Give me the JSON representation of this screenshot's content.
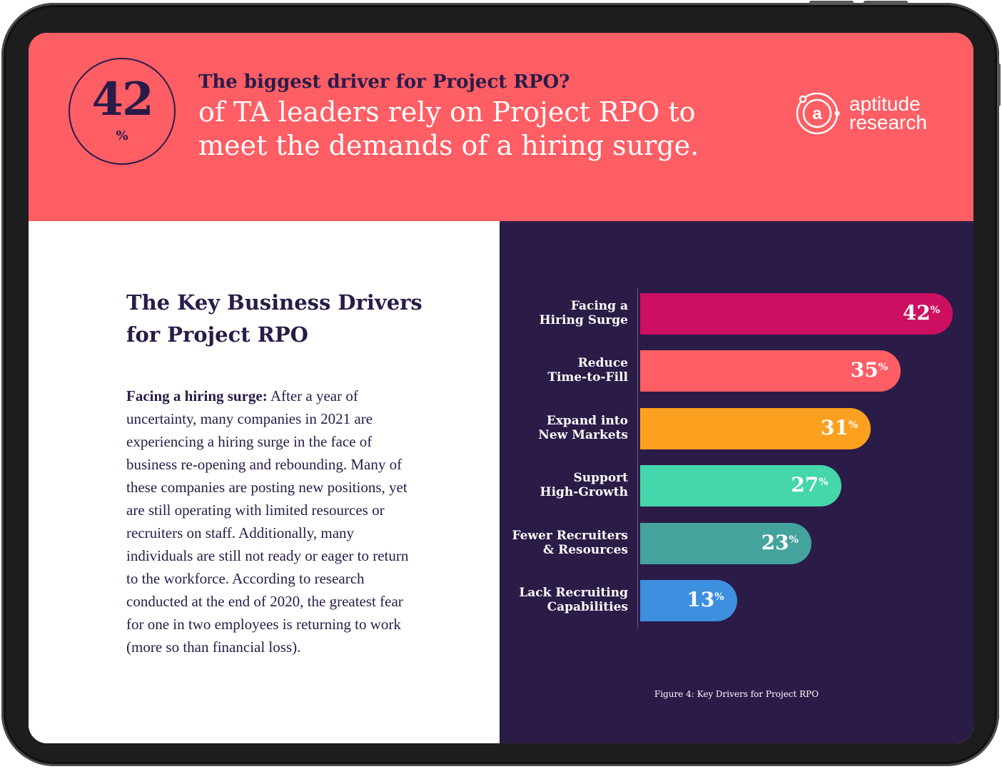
{
  "header": {
    "badge_value": "42",
    "badge_unit": "%",
    "eyebrow": "The biggest driver for Project RPO?",
    "headline": "of TA leaders rely on Project RPO to meet the demands of a hiring surge.",
    "logo_line1": "aptitude",
    "logo_line2": "research",
    "background_color": "#fe5e64"
  },
  "left": {
    "section_title": "The Key Business Drivers for Project RPO",
    "lead_bold": "Facing a hiring surge:",
    "body": " After a year of uncertainty, many companies in 2021 are experiencing a hiring surge in the face of business re-opening and rebounding. Many of these companies are posting new positions, yet are still operating with limited resources or recruiters on staff. Additionally, many individuals are still not ready or eager to return to the workforce. According to research conducted at the end of 2020, the greatest fear for one in two employees is returning to work (more so than financial loss)."
  },
  "chart_data": {
    "type": "bar",
    "orientation": "horizontal",
    "categories": [
      "Facing a Hiring Surge",
      "Reduce Time-to-Fill",
      "Expand into New Markets",
      "Support High-Growth",
      "Fewer Recruiters & Resources",
      "Lack Recruiting Capabilities"
    ],
    "label_lines": [
      [
        "Facing a",
        "Hiring Surge"
      ],
      [
        "Reduce",
        "Time-to-Fill"
      ],
      [
        "Expand into",
        "New Markets"
      ],
      [
        "Support",
        "High-Growth"
      ],
      [
        "Fewer Recruiters",
        "& Resources"
      ],
      [
        "Lack Recruiting",
        "Capabilities"
      ]
    ],
    "values": [
      42,
      35,
      31,
      27,
      23,
      13
    ],
    "value_suffix": "%",
    "colors": [
      "#cc0f60",
      "#fe5e64",
      "#fba11f",
      "#45d6ab",
      "#45a39d",
      "#3d8fe0"
    ],
    "xlim": [
      0,
      42
    ],
    "caption": "Figure 4: Key Drivers for Project RPO",
    "background_color": "#2b1b47"
  }
}
